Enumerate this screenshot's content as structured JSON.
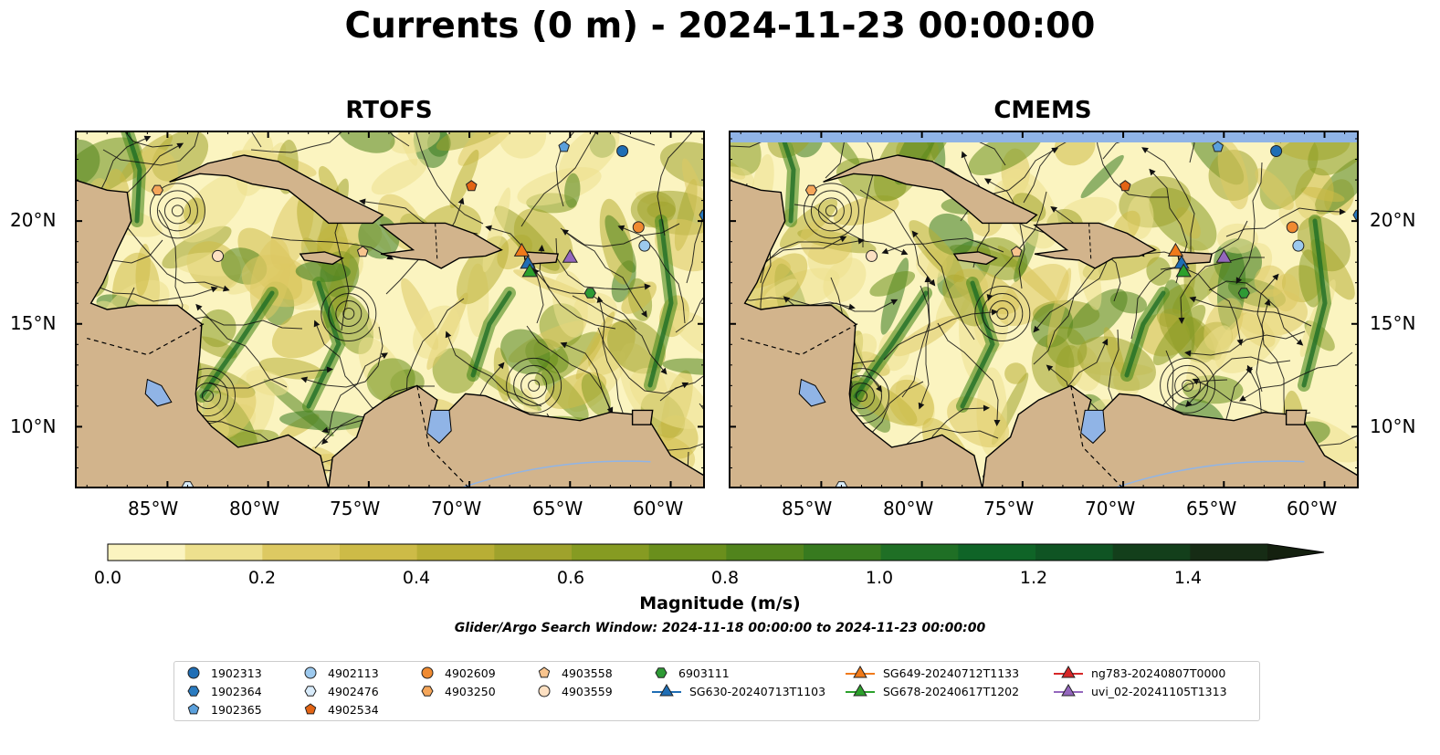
{
  "title": "Currents (0 m) - 2024-11-23 00:00:00",
  "panels": [
    {
      "title": "RTOFS"
    },
    {
      "title": "CMEMS"
    }
  ],
  "lon_ticks": [
    "85°W",
    "80°W",
    "75°W",
    "70°W",
    "65°W",
    "60°W"
  ],
  "lat_ticks": [
    "20°N",
    "15°N",
    "10°N"
  ],
  "colorbar": {
    "label": "Magnitude (m/s)",
    "ticks": [
      "0.0",
      "0.2",
      "0.4",
      "0.6",
      "0.8",
      "1.0",
      "1.2",
      "1.4"
    ],
    "colors": [
      "#fbf4c0",
      "#ede08e",
      "#ddc962",
      "#cdbb47",
      "#b8ae35",
      "#9fa22c",
      "#869b22",
      "#6a8f1c",
      "#51841c",
      "#377a1f",
      "#1f6f25",
      "#0f6427",
      "#0f5423",
      "#133f1b",
      "#162c15",
      "#14200f"
    ]
  },
  "search_window": "Glider/Argo Search Window: 2024-11-18 00:00:00 to 2024-11-23 00:00:00",
  "legend": [
    {
      "label": "1902313",
      "marker": "circle",
      "color": "#1f6eb5"
    },
    {
      "label": "1902364",
      "marker": "hexagon",
      "color": "#2a7bc0"
    },
    {
      "label": "1902365",
      "marker": "pentagon",
      "color": "#5aa0dc"
    },
    {
      "label": "4902113",
      "marker": "circle",
      "color": "#9cc9ee"
    },
    {
      "label": "4902476",
      "marker": "hexagon",
      "color": "#d8ebfa"
    },
    {
      "label": "4902534",
      "marker": "pentagon",
      "color": "#e36414"
    },
    {
      "label": "4902609",
      "marker": "circle",
      "color": "#f08a30"
    },
    {
      "label": "4903250",
      "marker": "hexagon",
      "color": "#f5a65a"
    },
    {
      "label": "4903558",
      "marker": "pentagon",
      "color": "#f8c48e"
    },
    {
      "label": "4903559",
      "marker": "circle",
      "color": "#fde0c2"
    },
    {
      "label": "6903111",
      "marker": "hexagon",
      "color": "#2e9a35"
    },
    {
      "label": "SG630-20240713T1103",
      "marker": "triangle",
      "color": "#1f6eb5"
    },
    {
      "label": "SG649-20240712T1133",
      "marker": "triangle",
      "color": "#f07a1a"
    },
    {
      "label": "SG678-20240617T1202",
      "marker": "triangle",
      "color": "#2ca02c"
    },
    {
      "label": "ng783-20240807T0000",
      "marker": "triangle",
      "color": "#d62728"
    },
    {
      "label": "uvi_02-20241105T1313",
      "marker": "triangle",
      "color": "#9467bd"
    }
  ],
  "map_colors": {
    "land": "#d2b48c",
    "lake": "#90b4e6",
    "ocean_low": "#fbf4c0",
    "ocean_high": "#2c6e1a",
    "nodata": "#90b4e6"
  },
  "extent": {
    "lon_min": -89.6,
    "lon_max": -58.3,
    "lat_min": 7.0,
    "lat_max": 24.4
  }
}
